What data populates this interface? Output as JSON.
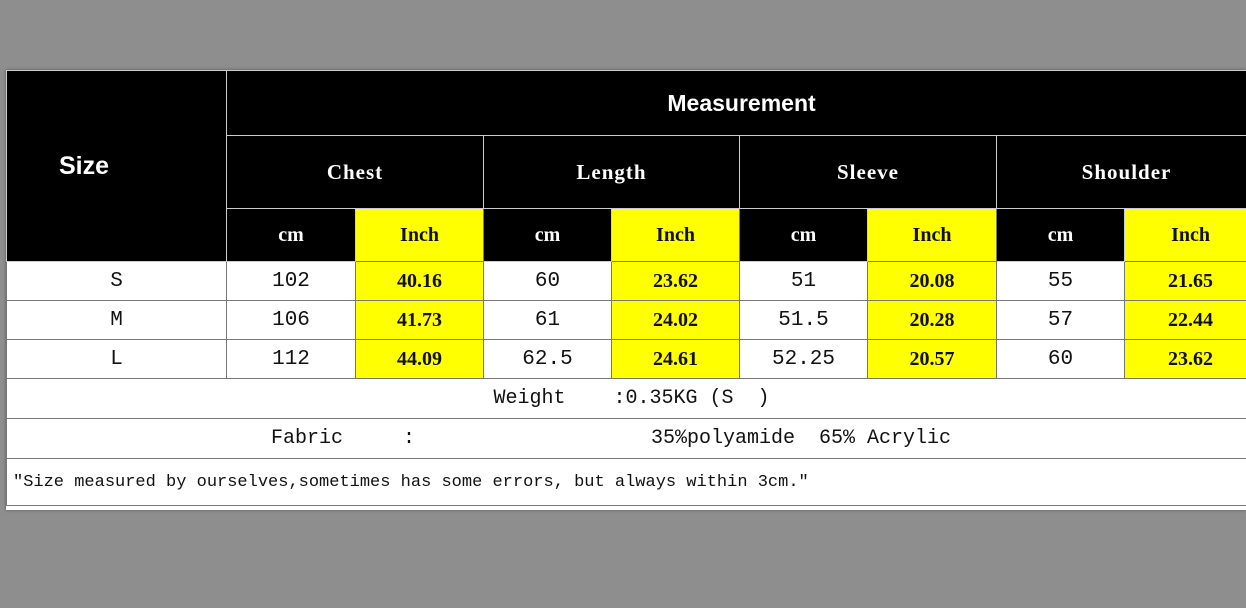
{
  "header": {
    "size": "Size",
    "measurement": "Measurement",
    "groups": [
      "Chest",
      "Length",
      "Sleeve",
      "Shoulder"
    ],
    "units": [
      "cm",
      "Inch"
    ]
  },
  "rows": [
    {
      "size": "S",
      "values": [
        "102",
        "40.16",
        "60",
        "23.62",
        "51",
        "20.08",
        "55",
        "21.65"
      ]
    },
    {
      "size": "M",
      "values": [
        "106",
        "41.73",
        "61",
        "24.02",
        "51.5",
        "20.28",
        "57",
        "22.44"
      ]
    },
    {
      "size": "L",
      "values": [
        "112",
        "44.09",
        "62.5",
        "24.61",
        "52.25",
        "20.57",
        "60",
        "23.62"
      ]
    }
  ],
  "weight": "Weight    :0.35KG (S  )",
  "fabric_label": "Fabric     :",
  "fabric_value": "35%polyamide  65% Acrylic",
  "note": "\"Size measured by ourselves,sometimes has some errors, but always within 3cm.\"",
  "colors": {
    "header_bg": "#000000",
    "inch_bg": "#ffff00",
    "background": "#8e8e8e"
  }
}
